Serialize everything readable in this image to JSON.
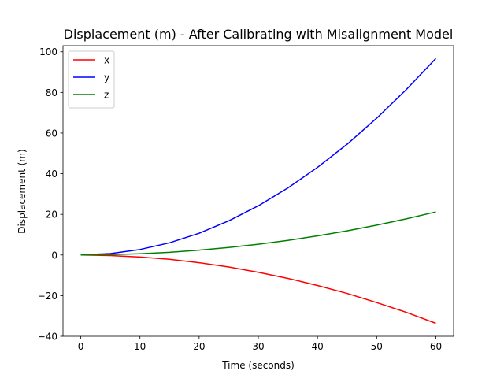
{
  "chart_data": {
    "type": "line",
    "title": "Displacement (m) - After Calibrating with Misalignment Model",
    "xlabel": "Time (seconds)",
    "ylabel": "Displacement (m)",
    "xlim": [
      -3,
      63
    ],
    "ylim": [
      -40,
      103
    ],
    "xticks": [
      0,
      10,
      20,
      30,
      40,
      50,
      60
    ],
    "yticks": [
      -40,
      -20,
      0,
      20,
      40,
      60,
      80,
      100
    ],
    "grid": false,
    "legend": "top-left",
    "series": [
      {
        "name": "x",
        "color": "#ff0000",
        "x": [
          0,
          5,
          10,
          15,
          20,
          25,
          30,
          35,
          40,
          45,
          50,
          55,
          60
        ],
        "values": [
          0,
          -0.3,
          -1.0,
          -2.1,
          -3.8,
          -5.9,
          -8.5,
          -11.5,
          -15.0,
          -18.9,
          -23.4,
          -28.2,
          -33.6
        ]
      },
      {
        "name": "y",
        "color": "#0000ff",
        "x": [
          0,
          5,
          10,
          15,
          20,
          25,
          30,
          35,
          40,
          45,
          50,
          55,
          60
        ],
        "values": [
          0,
          0.7,
          2.7,
          6.0,
          10.7,
          16.8,
          24.2,
          33.0,
          43.1,
          54.5,
          67.3,
          81.4,
          96.7
        ]
      },
      {
        "name": "z",
        "color": "#008000",
        "x": [
          0,
          5,
          10,
          15,
          20,
          25,
          30,
          35,
          40,
          45,
          50,
          55,
          60
        ],
        "values": [
          0,
          0.2,
          0.6,
          1.3,
          2.4,
          3.7,
          5.3,
          7.2,
          9.4,
          11.9,
          14.7,
          17.8,
          21.2
        ]
      }
    ]
  }
}
